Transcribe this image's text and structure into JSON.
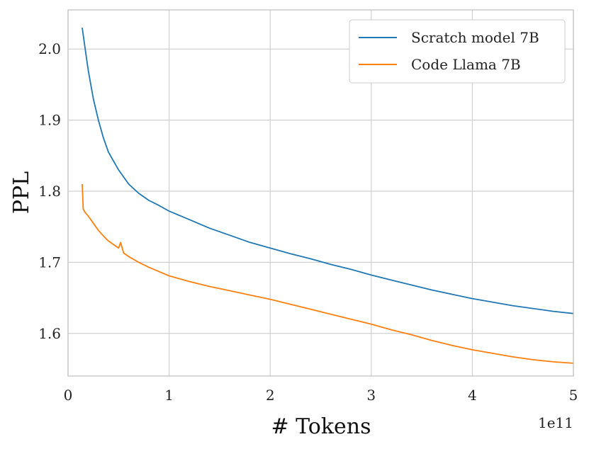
{
  "chart_data": {
    "type": "line",
    "xlabel": "# Tokens",
    "ylabel": "PPL",
    "x_offset_text": "1e11",
    "xlim": [
      0,
      5
    ],
    "ylim": [
      1.54,
      2.055
    ],
    "x_ticks": [
      0,
      1,
      2,
      3,
      4,
      5
    ],
    "y_ticks": [
      1.6,
      1.7,
      1.8,
      1.9,
      2.0
    ],
    "x_tick_labels": [
      "0",
      "1",
      "2",
      "3",
      "4",
      "5"
    ],
    "y_tick_labels": [
      "1.6",
      "1.7",
      "1.8",
      "1.9",
      "2.0"
    ],
    "grid": true,
    "legend_position": "top-right",
    "series": [
      {
        "name": "Scratch model 7B",
        "color": "#1f77b4",
        "x": [
          0.14,
          0.17,
          0.2,
          0.25,
          0.3,
          0.35,
          0.4,
          0.5,
          0.6,
          0.7,
          0.8,
          0.9,
          1.0,
          1.2,
          1.4,
          1.6,
          1.8,
          2.0,
          2.2,
          2.4,
          2.6,
          2.8,
          3.0,
          3.2,
          3.4,
          3.6,
          3.8,
          4.0,
          4.2,
          4.4,
          4.6,
          4.8,
          5.0
        ],
        "y": [
          2.03,
          2.0,
          1.97,
          1.93,
          1.9,
          1.875,
          1.855,
          1.83,
          1.81,
          1.797,
          1.787,
          1.78,
          1.772,
          1.76,
          1.748,
          1.738,
          1.728,
          1.72,
          1.712,
          1.705,
          1.697,
          1.69,
          1.682,
          1.675,
          1.668,
          1.661,
          1.655,
          1.649,
          1.644,
          1.639,
          1.635,
          1.631,
          1.628
        ]
      },
      {
        "name": "Code Llama 7B",
        "color": "#ff7f0e",
        "x": [
          0.14,
          0.15,
          0.17,
          0.2,
          0.25,
          0.3,
          0.35,
          0.4,
          0.5,
          0.52,
          0.55,
          0.6,
          0.7,
          0.8,
          0.9,
          1.0,
          1.2,
          1.4,
          1.6,
          1.8,
          2.0,
          2.2,
          2.4,
          2.6,
          2.8,
          3.0,
          3.2,
          3.4,
          3.6,
          3.8,
          4.0,
          4.2,
          4.4,
          4.6,
          4.8,
          5.0
        ],
        "y": [
          1.81,
          1.775,
          1.77,
          1.765,
          1.755,
          1.745,
          1.737,
          1.73,
          1.72,
          1.728,
          1.713,
          1.708,
          1.7,
          1.693,
          1.687,
          1.681,
          1.673,
          1.666,
          1.66,
          1.654,
          1.648,
          1.641,
          1.634,
          1.627,
          1.62,
          1.613,
          1.605,
          1.598,
          1.59,
          1.583,
          1.577,
          1.572,
          1.567,
          1.563,
          1.56,
          1.558
        ]
      }
    ]
  }
}
